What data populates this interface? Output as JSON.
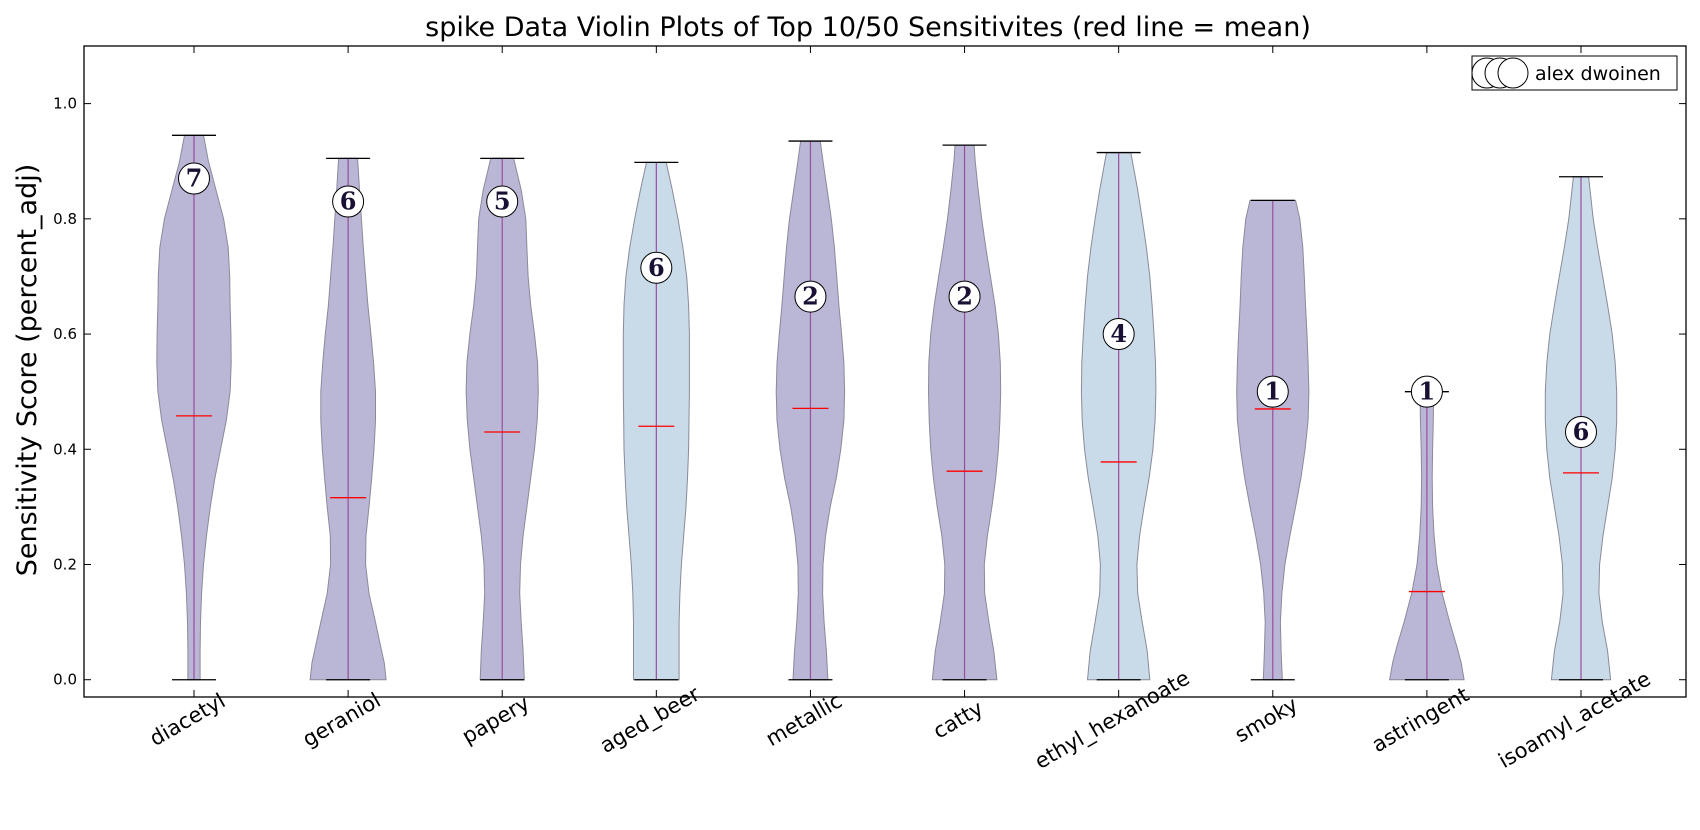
{
  "chart_data": {
    "type": "violin",
    "title": "spike Data Violin Plots of Top 10/50 Sensitivites (red line = mean)",
    "xlabel": "",
    "ylabel": "Sensitivity Score (percent_adj)",
    "ylim": [
      -0.03,
      1.1
    ],
    "yticks": [
      0.0,
      0.2,
      0.4,
      0.6,
      0.8,
      1.0
    ],
    "ytick_labels": [
      "0.0",
      "0.2",
      "0.4",
      "0.6",
      "0.8",
      "1.0"
    ],
    "legend": {
      "label": "alex dwoinen",
      "position": "top-right"
    },
    "mean_line_color": "#ff0000",
    "colors": {
      "purple": "#b5b3d3",
      "blue": "#c6d8e8",
      "violin_edge": "#8a8a9a",
      "center_line": "#9a4d9e"
    },
    "categories": [
      "diacetyl",
      "geraniol",
      "papery",
      "aged_beer",
      "metallic",
      "catty",
      "ethyl_hexanoate",
      "smoky",
      "astringent",
      "isoamyl_acetate"
    ],
    "series": [
      {
        "category": "diacetyl",
        "min": 0.0,
        "max": 0.945,
        "mean": 0.458,
        "count": 7,
        "color": "purple",
        "density": [
          [
            0.0,
            0.16
          ],
          [
            0.05,
            0.16
          ],
          [
            0.1,
            0.17
          ],
          [
            0.15,
            0.2
          ],
          [
            0.2,
            0.25
          ],
          [
            0.25,
            0.33
          ],
          [
            0.3,
            0.43
          ],
          [
            0.35,
            0.55
          ],
          [
            0.4,
            0.7
          ],
          [
            0.45,
            0.85
          ],
          [
            0.5,
            0.95
          ],
          [
            0.55,
            0.98
          ],
          [
            0.6,
            0.97
          ],
          [
            0.65,
            0.95
          ],
          [
            0.7,
            0.94
          ],
          [
            0.75,
            0.9
          ],
          [
            0.8,
            0.78
          ],
          [
            0.85,
            0.58
          ],
          [
            0.9,
            0.38
          ],
          [
            0.945,
            0.25
          ]
        ]
      },
      {
        "category": "geraniol",
        "min": 0.0,
        "max": 0.905,
        "mean": 0.316,
        "count": 6,
        "color": "purple",
        "density": [
          [
            0.0,
            1.0
          ],
          [
            0.03,
            0.95
          ],
          [
            0.06,
            0.85
          ],
          [
            0.1,
            0.72
          ],
          [
            0.15,
            0.55
          ],
          [
            0.2,
            0.46
          ],
          [
            0.25,
            0.47
          ],
          [
            0.3,
            0.55
          ],
          [
            0.35,
            0.62
          ],
          [
            0.4,
            0.68
          ],
          [
            0.45,
            0.72
          ],
          [
            0.5,
            0.72
          ],
          [
            0.55,
            0.67
          ],
          [
            0.6,
            0.6
          ],
          [
            0.65,
            0.52
          ],
          [
            0.7,
            0.46
          ],
          [
            0.75,
            0.4
          ],
          [
            0.8,
            0.35
          ],
          [
            0.85,
            0.3
          ],
          [
            0.905,
            0.25
          ]
        ]
      },
      {
        "category": "papery",
        "min": 0.0,
        "max": 0.905,
        "mean": 0.43,
        "count": 5,
        "color": "purple",
        "density": [
          [
            0.0,
            0.58
          ],
          [
            0.05,
            0.55
          ],
          [
            0.1,
            0.5
          ],
          [
            0.15,
            0.46
          ],
          [
            0.2,
            0.48
          ],
          [
            0.25,
            0.55
          ],
          [
            0.3,
            0.65
          ],
          [
            0.35,
            0.75
          ],
          [
            0.4,
            0.85
          ],
          [
            0.45,
            0.92
          ],
          [
            0.5,
            0.95
          ],
          [
            0.55,
            0.93
          ],
          [
            0.6,
            0.85
          ],
          [
            0.65,
            0.75
          ],
          [
            0.7,
            0.68
          ],
          [
            0.75,
            0.65
          ],
          [
            0.8,
            0.62
          ],
          [
            0.85,
            0.5
          ],
          [
            0.905,
            0.3
          ]
        ]
      },
      {
        "category": "aged_beer",
        "min": 0.0,
        "max": 0.898,
        "mean": 0.44,
        "count": 6,
        "color": "blue",
        "density": [
          [
            0.0,
            0.6
          ],
          [
            0.05,
            0.6
          ],
          [
            0.1,
            0.6
          ],
          [
            0.15,
            0.62
          ],
          [
            0.2,
            0.66
          ],
          [
            0.25,
            0.72
          ],
          [
            0.3,
            0.78
          ],
          [
            0.35,
            0.82
          ],
          [
            0.4,
            0.85
          ],
          [
            0.45,
            0.86
          ],
          [
            0.5,
            0.87
          ],
          [
            0.55,
            0.87
          ],
          [
            0.6,
            0.87
          ],
          [
            0.65,
            0.85
          ],
          [
            0.7,
            0.8
          ],
          [
            0.75,
            0.7
          ],
          [
            0.8,
            0.57
          ],
          [
            0.85,
            0.42
          ],
          [
            0.898,
            0.26
          ]
        ]
      },
      {
        "category": "metallic",
        "min": 0.0,
        "max": 0.935,
        "mean": 0.471,
        "count": 2,
        "color": "purple",
        "density": [
          [
            0.0,
            0.46
          ],
          [
            0.05,
            0.42
          ],
          [
            0.1,
            0.36
          ],
          [
            0.15,
            0.32
          ],
          [
            0.2,
            0.33
          ],
          [
            0.25,
            0.4
          ],
          [
            0.3,
            0.52
          ],
          [
            0.35,
            0.68
          ],
          [
            0.4,
            0.8
          ],
          [
            0.45,
            0.88
          ],
          [
            0.5,
            0.9
          ],
          [
            0.55,
            0.88
          ],
          [
            0.6,
            0.82
          ],
          [
            0.65,
            0.75
          ],
          [
            0.7,
            0.69
          ],
          [
            0.75,
            0.63
          ],
          [
            0.8,
            0.55
          ],
          [
            0.85,
            0.44
          ],
          [
            0.9,
            0.33
          ],
          [
            0.935,
            0.26
          ]
        ]
      },
      {
        "category": "catty",
        "min": 0.0,
        "max": 0.928,
        "mean": 0.362,
        "count": 2,
        "color": "purple",
        "density": [
          [
            0.0,
            0.85
          ],
          [
            0.05,
            0.77
          ],
          [
            0.1,
            0.64
          ],
          [
            0.15,
            0.53
          ],
          [
            0.2,
            0.52
          ],
          [
            0.25,
            0.6
          ],
          [
            0.3,
            0.72
          ],
          [
            0.35,
            0.82
          ],
          [
            0.4,
            0.89
          ],
          [
            0.45,
            0.93
          ],
          [
            0.5,
            0.95
          ],
          [
            0.55,
            0.94
          ],
          [
            0.6,
            0.89
          ],
          [
            0.65,
            0.8
          ],
          [
            0.7,
            0.68
          ],
          [
            0.75,
            0.56
          ],
          [
            0.8,
            0.45
          ],
          [
            0.85,
            0.36
          ],
          [
            0.9,
            0.28
          ],
          [
            0.928,
            0.25
          ]
        ]
      },
      {
        "category": "ethyl_hexanoate",
        "min": 0.0,
        "max": 0.915,
        "mean": 0.378,
        "count": 4,
        "color": "blue",
        "density": [
          [
            0.0,
            0.82
          ],
          [
            0.05,
            0.75
          ],
          [
            0.1,
            0.62
          ],
          [
            0.15,
            0.5
          ],
          [
            0.2,
            0.48
          ],
          [
            0.25,
            0.55
          ],
          [
            0.3,
            0.67
          ],
          [
            0.35,
            0.8
          ],
          [
            0.4,
            0.9
          ],
          [
            0.45,
            0.96
          ],
          [
            0.5,
            0.98
          ],
          [
            0.55,
            0.97
          ],
          [
            0.6,
            0.93
          ],
          [
            0.65,
            0.88
          ],
          [
            0.7,
            0.82
          ],
          [
            0.75,
            0.73
          ],
          [
            0.8,
            0.62
          ],
          [
            0.85,
            0.5
          ],
          [
            0.915,
            0.32
          ]
        ]
      },
      {
        "category": "smoky",
        "min": 0.0,
        "max": 0.832,
        "mean": 0.47,
        "count": 1,
        "color": "purple",
        "density": [
          [
            0.0,
            0.25
          ],
          [
            0.05,
            0.22
          ],
          [
            0.1,
            0.2
          ],
          [
            0.15,
            0.24
          ],
          [
            0.2,
            0.32
          ],
          [
            0.25,
            0.45
          ],
          [
            0.3,
            0.6
          ],
          [
            0.35,
            0.74
          ],
          [
            0.4,
            0.85
          ],
          [
            0.45,
            0.93
          ],
          [
            0.5,
            0.95
          ],
          [
            0.55,
            0.93
          ],
          [
            0.6,
            0.9
          ],
          [
            0.65,
            0.86
          ],
          [
            0.7,
            0.83
          ],
          [
            0.75,
            0.79
          ],
          [
            0.8,
            0.71
          ],
          [
            0.832,
            0.6
          ]
        ]
      },
      {
        "category": "astringent",
        "min": 0.0,
        "max": 0.5,
        "mean": 0.153,
        "count": 1,
        "color": "purple",
        "density": [
          [
            0.0,
            0.98
          ],
          [
            0.03,
            0.9
          ],
          [
            0.06,
            0.78
          ],
          [
            0.1,
            0.6
          ],
          [
            0.15,
            0.4
          ],
          [
            0.2,
            0.26
          ],
          [
            0.25,
            0.19
          ],
          [
            0.3,
            0.15
          ],
          [
            0.35,
            0.14
          ],
          [
            0.4,
            0.15
          ],
          [
            0.45,
            0.17
          ],
          [
            0.5,
            0.18
          ]
        ]
      },
      {
        "category": "isoamyl_acetate",
        "min": 0.0,
        "max": 0.873,
        "mean": 0.359,
        "count": 6,
        "color": "blue",
        "density": [
          [
            0.0,
            0.78
          ],
          [
            0.05,
            0.7
          ],
          [
            0.1,
            0.56
          ],
          [
            0.15,
            0.47
          ],
          [
            0.2,
            0.49
          ],
          [
            0.25,
            0.58
          ],
          [
            0.3,
            0.7
          ],
          [
            0.35,
            0.82
          ],
          [
            0.4,
            0.9
          ],
          [
            0.45,
            0.94
          ],
          [
            0.5,
            0.94
          ],
          [
            0.55,
            0.9
          ],
          [
            0.6,
            0.82
          ],
          [
            0.65,
            0.7
          ],
          [
            0.7,
            0.57
          ],
          [
            0.75,
            0.44
          ],
          [
            0.8,
            0.32
          ],
          [
            0.873,
            0.2
          ]
        ]
      }
    ]
  }
}
